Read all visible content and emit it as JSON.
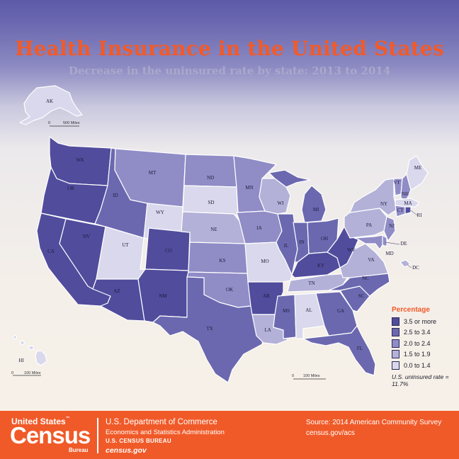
{
  "title": "Health Insurance in the United States",
  "subtitle": "Decrease in the uninsured rate by state: 2013 to 2014",
  "legend": {
    "title": "Percentage",
    "items": [
      {
        "label": "3.5 or more",
        "color": "#514c9c"
      },
      {
        "label": "2.5 to 3.4",
        "color": "#6b68b0"
      },
      {
        "label": "2.0 to 2.4",
        "color": "#8f8cc6"
      },
      {
        "label": "1.5 to 1.9",
        "color": "#b3b1d8"
      },
      {
        "label": "0.0 to 1.4",
        "color": "#d9d8ec"
      }
    ],
    "note": "U.S. uninsured rate = 11.7%"
  },
  "scale_bars": {
    "alaska": "500 Miles",
    "hawaii": "100 Miles",
    "conus": "100 Miles",
    "zero": "0"
  },
  "states": {
    "AK": {
      "label": "AK",
      "class": "0.0 to 1.4"
    },
    "HI": {
      "label": "HI",
      "class": "0.0 to 1.4"
    },
    "WA": {
      "label": "WA",
      "class": "3.5 or more"
    },
    "OR": {
      "label": "OR",
      "class": "3.5 or more"
    },
    "CA": {
      "label": "CA",
      "class": "3.5 or more"
    },
    "NV": {
      "label": "NV",
      "class": "3.5 or more"
    },
    "ID": {
      "label": "ID",
      "class": "2.5 to 3.4"
    },
    "MT": {
      "label": "MT",
      "class": "2.0 to 2.4"
    },
    "WY": {
      "label": "WY",
      "class": "0.0 to 1.4"
    },
    "UT": {
      "label": "UT",
      "class": "0.0 to 1.4"
    },
    "AZ": {
      "label": "AZ",
      "class": "3.5 or more"
    },
    "CO": {
      "label": "CO",
      "class": "3.5 or more"
    },
    "NM": {
      "label": "NM",
      "class": "3.5 or more"
    },
    "ND": {
      "label": "ND",
      "class": "2.0 to 2.4"
    },
    "SD": {
      "label": "SD",
      "class": "0.0 to 1.4"
    },
    "NE": {
      "label": "NE",
      "class": "1.5 to 1.9"
    },
    "KS": {
      "label": "KS",
      "class": "2.0 to 2.4"
    },
    "OK": {
      "label": "OK",
      "class": "2.0 to 2.4"
    },
    "TX": {
      "label": "TX",
      "class": "2.5 to 3.4"
    },
    "MN": {
      "label": "MN",
      "class": "2.0 to 2.4"
    },
    "IA": {
      "label": "IA",
      "class": "2.0 to 2.4"
    },
    "MO": {
      "label": "MO",
      "class": "0.0 to 1.4"
    },
    "AR": {
      "label": "AR",
      "class": "3.5 or more"
    },
    "LA": {
      "label": "LA",
      "class": "1.5 to 1.9"
    },
    "WI": {
      "label": "WI",
      "class": "1.5 to 1.9"
    },
    "IL": {
      "label": "IL",
      "class": "2.5 to 3.4"
    },
    "MI": {
      "label": "MI",
      "class": "2.5 to 3.4"
    },
    "IN": {
      "label": "IN",
      "class": "2.5 to 3.4"
    },
    "OH": {
      "label": "OH",
      "class": "2.5 to 3.4"
    },
    "KY": {
      "label": "KY",
      "class": "3.5 or more"
    },
    "TN": {
      "label": "TN",
      "class": "1.5 to 1.9"
    },
    "MS": {
      "label": "MS",
      "class": "2.5 to 3.4"
    },
    "AL": {
      "label": "AL",
      "class": "0.0 to 1.4"
    },
    "GA": {
      "label": "GA",
      "class": "2.5 to 3.4"
    },
    "FL": {
      "label": "FL",
      "class": "2.5 to 3.4"
    },
    "SC": {
      "label": "SC",
      "class": "2.5 to 3.4"
    },
    "NC": {
      "label": "NC",
      "class": "2.5 to 3.4"
    },
    "VA": {
      "label": "VA",
      "class": "1.5 to 1.9"
    },
    "WV": {
      "label": "WV",
      "class": "3.5 or more"
    },
    "PA": {
      "label": "PA",
      "class": "1.5 to 1.9"
    },
    "NY": {
      "label": "NY",
      "class": "1.5 to 1.9"
    },
    "VT": {
      "label": "VT",
      "class": "2.0 to 2.4"
    },
    "NH": {
      "label": "NH",
      "class": "2.0 to 2.4"
    },
    "ME": {
      "label": "ME",
      "class": "0.0 to 1.4"
    },
    "MA": {
      "label": "MA",
      "class": "0.0 to 1.4"
    },
    "RI": {
      "label": "RI",
      "class": "3.5 or more"
    },
    "CT": {
      "label": "CT",
      "class": "2.0 to 2.4"
    },
    "NJ": {
      "label": "NJ",
      "class": "2.0 to 2.4"
    },
    "DE": {
      "label": "DE",
      "class": "2.0 to 2.4"
    },
    "MD": {
      "label": "MD",
      "class": "2.0 to 2.4"
    },
    "DC": {
      "label": "DC",
      "class": "1.5 to 1.9"
    }
  },
  "footer": {
    "logo_line1": "United States",
    "logo_main": "Census",
    "logo_bureau": "Bureau",
    "dept": "U.S. Department of Commerce",
    "esa": "Economics and Statistics Administration",
    "bureau": "U.S. CENSUS BUREAU",
    "url": "census.gov",
    "source": "Source: 2014 American Community Survey",
    "source_url": "census.gov/acs"
  }
}
